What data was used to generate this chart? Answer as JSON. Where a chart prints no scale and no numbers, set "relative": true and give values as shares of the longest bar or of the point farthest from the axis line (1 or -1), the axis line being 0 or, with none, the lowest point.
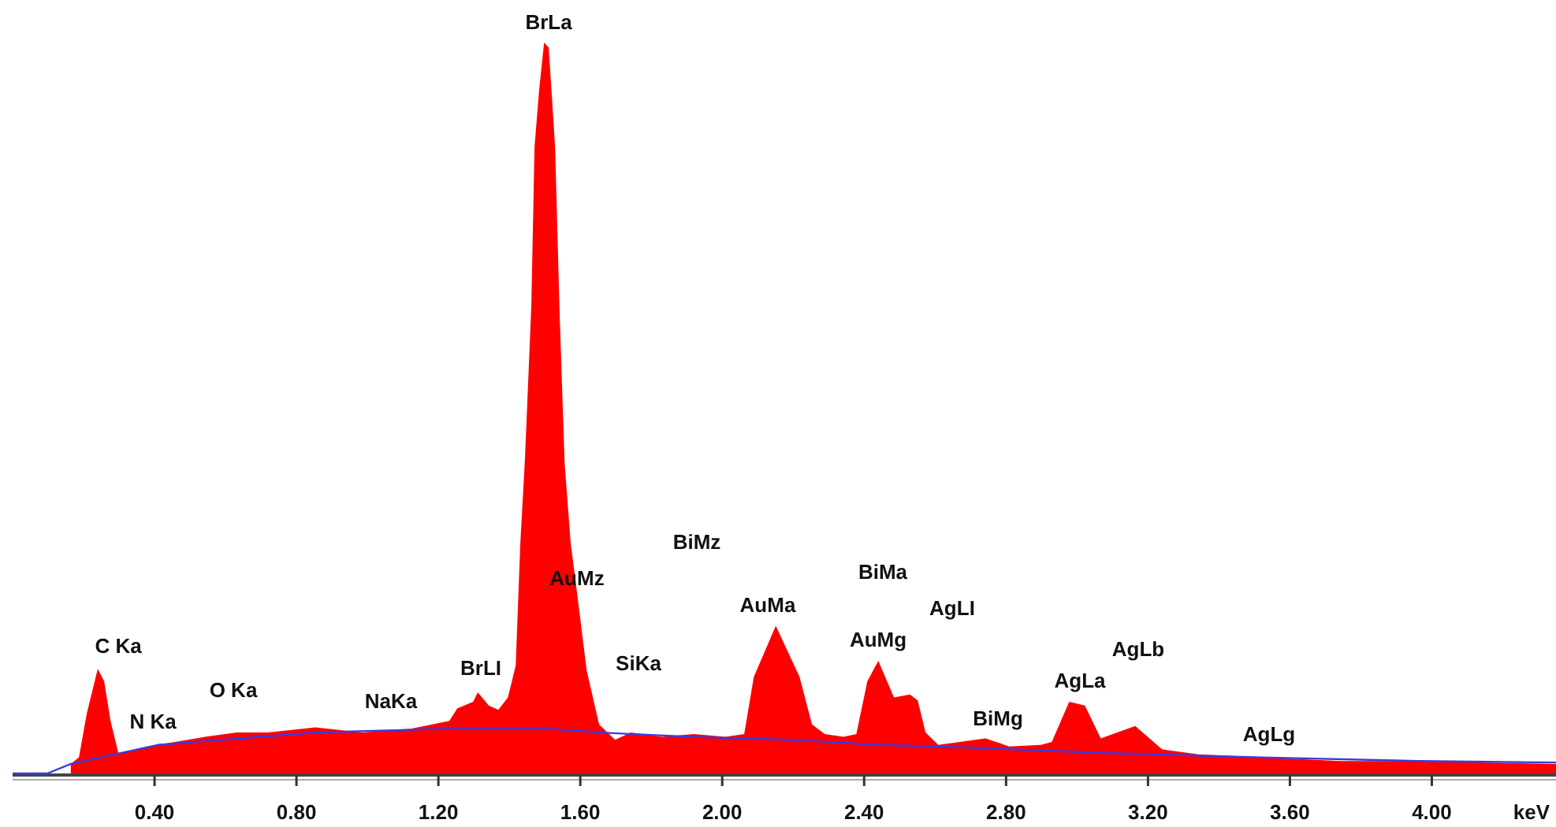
{
  "chart_data": {
    "type": "area",
    "relative": true,
    "xlabel": "keV",
    "xlim": [
      0,
      4.35
    ],
    "xticks": [
      {
        "value": 0.4,
        "label": "0.40"
      },
      {
        "value": 0.8,
        "label": "0.80"
      },
      {
        "value": 1.2,
        "label": "1.20"
      },
      {
        "value": 1.6,
        "label": "1.60"
      },
      {
        "value": 2.0,
        "label": "2.00"
      },
      {
        "value": 2.4,
        "label": "2.40"
      },
      {
        "value": 2.8,
        "label": "2.80"
      },
      {
        "value": 3.2,
        "label": "3.20"
      },
      {
        "value": 3.6,
        "label": "3.60"
      },
      {
        "value": 4.0,
        "label": "4.00"
      }
    ],
    "series": [
      {
        "color": "#ff0000",
        "x": [
          0.164,
          0.187,
          0.209,
          0.24,
          0.258,
          0.276,
          0.298,
          0.32,
          0.409,
          0.542,
          0.631,
          0.72,
          0.853,
          0.987,
          1.12,
          1.231,
          1.253,
          1.298,
          1.311,
          1.342,
          1.369,
          1.396,
          1.418,
          1.431,
          1.444,
          1.462,
          1.471,
          1.484,
          1.498,
          1.511,
          1.529,
          1.542,
          1.556,
          1.573,
          1.587,
          1.618,
          1.653,
          1.698,
          1.742,
          1.831,
          1.92,
          2.009,
          2.062,
          2.089,
          2.151,
          2.218,
          2.253,
          2.289,
          2.342,
          2.378,
          2.409,
          2.44,
          2.484,
          2.529,
          2.551,
          2.573,
          2.609,
          2.742,
          2.809,
          2.898,
          2.929,
          2.978,
          3.022,
          3.067,
          3.164,
          3.24,
          3.342,
          3.52,
          3.742,
          3.964,
          4.35
        ],
        "values": [
          0.013,
          0.022,
          0.082,
          0.143,
          0.126,
          0.072,
          0.028,
          0.03,
          0.039,
          0.05,
          0.056,
          0.056,
          0.063,
          0.056,
          0.061,
          0.072,
          0.089,
          0.098,
          0.111,
          0.093,
          0.087,
          0.104,
          0.148,
          0.315,
          0.43,
          0.64,
          0.857,
          0.935,
          1,
          0.993,
          0.857,
          0.625,
          0.423,
          0.315,
          0.262,
          0.141,
          0.067,
          0.046,
          0.056,
          0.05,
          0.054,
          0.05,
          0.054,
          0.132,
          0.202,
          0.132,
          0.067,
          0.054,
          0.05,
          0.054,
          0.126,
          0.154,
          0.104,
          0.108,
          0.1,
          0.056,
          0.039,
          0.048,
          0.037,
          0.039,
          0.043,
          0.098,
          0.093,
          0.048,
          0.065,
          0.033,
          0.026,
          0.022,
          0.017,
          0.017,
          0.013
        ]
      },
      {
        "type": "line",
        "color": "#3a3ae0",
        "x": [
          0,
          0.098,
          0.164,
          0.409,
          0.853,
          1.209,
          1.52,
          1.653,
          1.92,
          2.187,
          2.453,
          2.72,
          3.076,
          3.52,
          3.964,
          4.35
        ],
        "values": [
          0,
          0,
          0.013,
          0.039,
          0.056,
          0.061,
          0.061,
          0.056,
          0.05,
          0.046,
          0.039,
          0.035,
          0.028,
          0.022,
          0.017,
          0.015
        ]
      }
    ],
    "annotations": [
      "BrLa",
      "AuMz",
      "BiMz",
      "AuMa",
      "BiMa",
      "AgLI",
      "AuMg",
      "AgLb",
      "AgLa",
      "BiMg",
      "AgLg",
      "C Ka",
      "N Ka",
      "O Ka",
      "NaKa",
      "BrLI",
      "SiKa"
    ]
  }
}
